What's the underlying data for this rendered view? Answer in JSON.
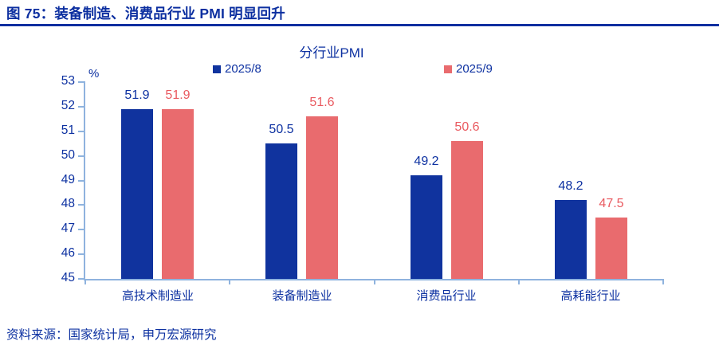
{
  "header": {
    "title": "图 75：装备制造、消费品行业 PMI 明显回升"
  },
  "chart_data": {
    "type": "bar",
    "title": "分行业PMI",
    "categories": [
      "高技术制造业",
      "装备制造业",
      "消费品行业",
      "高耗能行业"
    ],
    "series": [
      {
        "name": "2025/8",
        "color": "#10339E",
        "label_color": "#0D31A1",
        "values": [
          51.9,
          50.5,
          49.2,
          48.2
        ]
      },
      {
        "name": "2025/9",
        "color": "#E96B6E",
        "label_color": "#E9595F",
        "values": [
          51.9,
          51.6,
          50.6,
          47.5
        ]
      }
    ],
    "xlabel": "",
    "ylabel": "%",
    "ylim": [
      45,
      53
    ],
    "ytick_step": 1,
    "grid": false,
    "legend_position": "top"
  },
  "colors": {
    "title_blue": "#0C2FA0",
    "text_blue": "#0D31A1",
    "axis_light_blue": "#8FB3DE",
    "bar_blue": "#10339E",
    "bar_red": "#E96B6E"
  },
  "footer": {
    "source": "资料来源：国家统计局，申万宏源研究"
  }
}
